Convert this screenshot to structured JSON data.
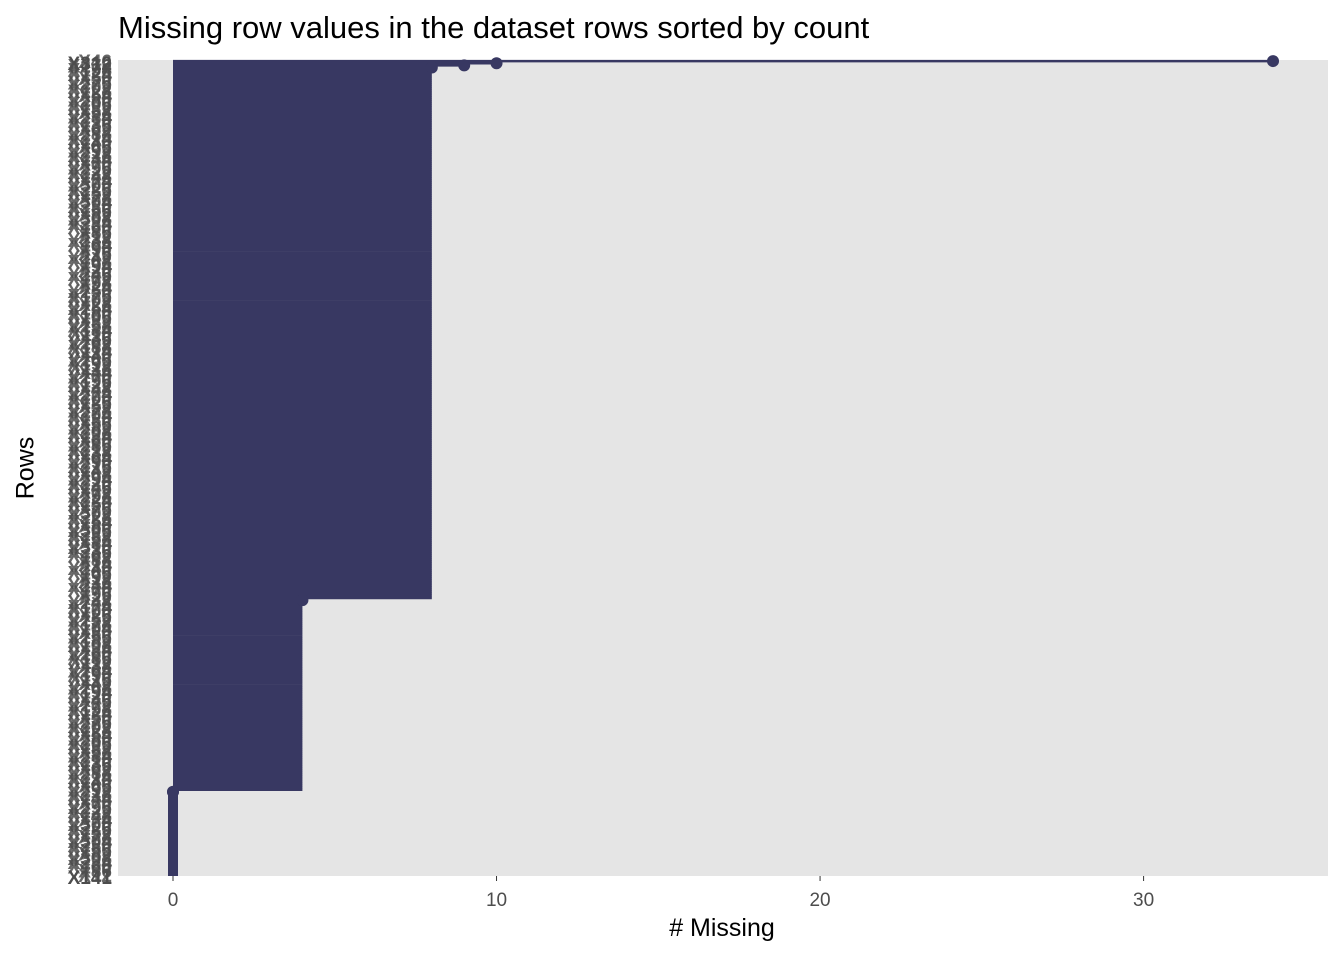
{
  "chart_data": {
    "type": "lollipop",
    "title": "Missing row values in the dataset rows sorted by count",
    "xlabel": "# Missing",
    "ylabel": "Rows",
    "xlim": [
      -1.7,
      35.7
    ],
    "x_ticks": [
      0,
      10,
      20,
      30
    ],
    "grid": false,
    "legend": "none",
    "colors": {
      "panel": "#e5e5e5",
      "segment": "#383862",
      "tick_text": "#4d4d4d"
    },
    "groups": [
      {
        "n_missing": 0,
        "row_count": 40
      },
      {
        "n_missing": 4,
        "row_count": 90
      },
      {
        "n_missing": 8,
        "row_count": 250
      },
      {
        "n_missing": 9,
        "row_count": 1
      },
      {
        "n_missing": 10,
        "row_count": 1
      },
      {
        "n_missing": 34,
        "row_count": 1
      }
    ],
    "row_labels": {
      "bottom": "X141",
      "top": "X312",
      "prefix": "X"
    }
  }
}
